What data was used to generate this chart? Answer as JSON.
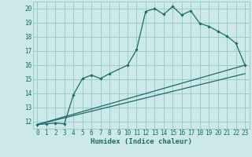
{
  "xlabel": "Humidex (Indice chaleur)",
  "bg_color": "#cce8e8",
  "grid_color": "#99cccc",
  "line_color": "#1a6b6b",
  "xlim": [
    -0.5,
    23.5
  ],
  "ylim": [
    11.5,
    20.5
  ],
  "xticks": [
    0,
    1,
    2,
    3,
    4,
    5,
    6,
    7,
    8,
    9,
    10,
    11,
    12,
    13,
    14,
    15,
    16,
    17,
    18,
    19,
    20,
    21,
    22,
    23
  ],
  "yticks": [
    12,
    13,
    14,
    15,
    16,
    17,
    18,
    19,
    20
  ],
  "curve1_x": [
    0,
    1,
    2,
    3,
    4,
    5,
    6,
    7,
    8,
    10,
    11,
    12,
    13,
    14,
    15,
    16,
    17,
    18,
    19,
    20,
    21,
    22,
    23
  ],
  "curve1_y": [
    11.8,
    11.85,
    11.9,
    11.85,
    13.9,
    15.05,
    15.3,
    15.05,
    15.4,
    16.0,
    17.1,
    19.8,
    20.0,
    19.6,
    20.15,
    19.55,
    19.85,
    18.95,
    18.75,
    18.4,
    18.05,
    17.55,
    16.0
  ],
  "line2_x": [
    0,
    23
  ],
  "line2_y": [
    11.8,
    16.0
  ],
  "line3_x": [
    0,
    23
  ],
  "line3_y": [
    11.8,
    15.4
  ],
  "font_size_ticks": 5.5,
  "font_size_xlabel": 6.5
}
